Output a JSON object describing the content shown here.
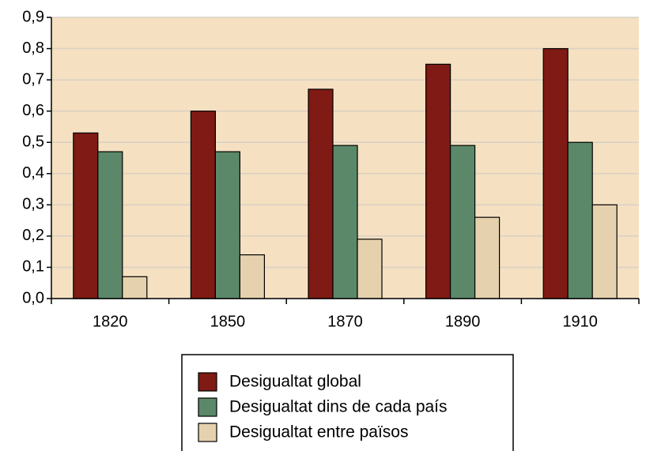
{
  "chart_data": {
    "type": "bar",
    "categories": [
      "1820",
      "1850",
      "1870",
      "1890",
      "1910"
    ],
    "series": [
      {
        "name": "Desigualtat global",
        "color": "#7f1a14",
        "values": [
          0.53,
          0.6,
          0.67,
          0.75,
          0.8
        ]
      },
      {
        "name": "Desigualtat dins de cada país",
        "color": "#5b8869",
        "values": [
          0.47,
          0.47,
          0.49,
          0.49,
          0.5
        ]
      },
      {
        "name": "Desigualtat entre països",
        "color": "#e5d1ad",
        "values": [
          0.07,
          0.14,
          0.19,
          0.26,
          0.3
        ]
      }
    ],
    "ylim": [
      0,
      0.9
    ],
    "yticks": [
      {
        "value": 0,
        "label": "0,0"
      },
      {
        "value": 0.1,
        "label": "0,1"
      },
      {
        "value": 0.2,
        "label": "0,2"
      },
      {
        "value": 0.3,
        "label": "0,3"
      },
      {
        "value": 0.4,
        "label": "0,4"
      },
      {
        "value": 0.5,
        "label": "0,5"
      },
      {
        "value": 0.6,
        "label": "0,6"
      },
      {
        "value": 0.7,
        "label": "0,7"
      },
      {
        "value": 0.8,
        "label": "0,8"
      },
      {
        "value": 0.9,
        "label": "0,9"
      }
    ],
    "grid": true,
    "legend": "bottom"
  }
}
